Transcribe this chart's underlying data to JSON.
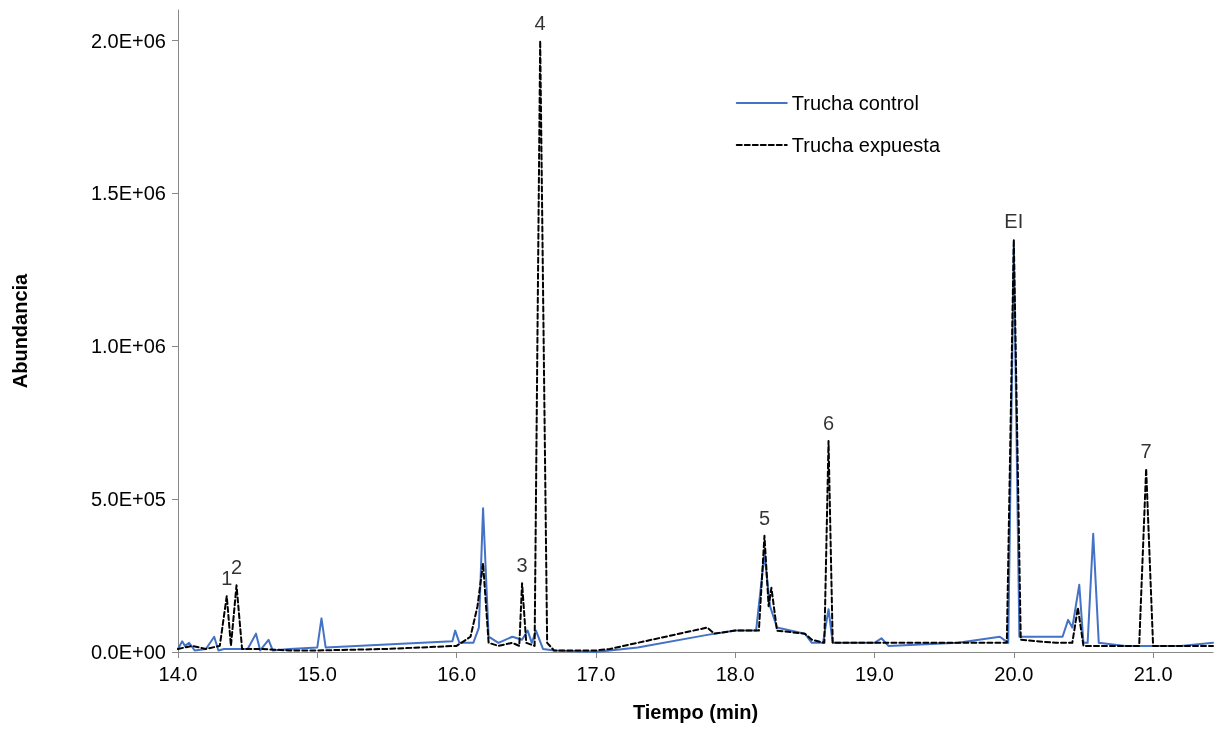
{
  "chart_data": {
    "type": "line",
    "xlabel": "Tiempo (min)",
    "ylabel": "Abundancia",
    "xlim": [
      14,
      21.43
    ],
    "xticks": [
      {
        "value": 14,
        "label": "14.0"
      },
      {
        "value": 15,
        "label": "15.0"
      },
      {
        "value": 16,
        "label": "16.0"
      },
      {
        "value": 17,
        "label": "17.0"
      },
      {
        "value": 18,
        "label": "18.0"
      },
      {
        "value": 19,
        "label": "19.0"
      },
      {
        "value": 20,
        "label": "20.0"
      },
      {
        "value": 21,
        "label": "21.0"
      }
    ],
    "ylim": [
      0,
      2100000
    ],
    "yticks": [
      {
        "value": 0,
        "label": "0.0E+00"
      },
      {
        "value": 500000,
        "label": "5.0E+05"
      },
      {
        "value": 1000000,
        "label": "1.0E+06"
      },
      {
        "value": 1500000,
        "label": "1.5E+06"
      },
      {
        "value": 2000000,
        "label": "2.0E+06"
      }
    ],
    "grid": false,
    "legend": "top right",
    "marker": "none",
    "series": [
      {
        "name": "Trucha control",
        "color": "#4472c4",
        "line_style": "solid",
        "x": [
          14.0,
          14.03,
          14.05,
          14.08,
          14.12,
          14.2,
          14.26,
          14.29,
          14.33,
          14.4,
          14.5,
          14.56,
          14.59,
          14.65,
          14.68,
          14.8,
          15.0,
          15.03,
          15.06,
          15.97,
          15.99,
          16.02,
          16.12,
          16.16,
          16.19,
          16.23,
          16.3,
          16.4,
          16.47,
          16.51,
          16.54,
          16.57,
          16.62,
          16.7,
          17.0,
          17.3,
          17.8,
          18.0,
          18.15,
          18.21,
          18.25,
          18.3,
          18.5,
          18.55,
          18.63,
          18.67,
          18.7,
          19.0,
          19.05,
          19.1,
          19.6,
          19.9,
          19.96,
          20.0,
          20.04,
          20.2,
          20.35,
          20.39,
          20.42,
          20.47,
          20.5,
          20.53,
          20.57,
          20.61,
          20.8,
          21.0,
          21.2,
          21.43
        ],
        "values": [
          10000,
          35000,
          20000,
          30000,
          5000,
          10000,
          50000,
          5000,
          10000,
          10000,
          10000,
          60000,
          5000,
          40000,
          5000,
          10000,
          15000,
          110000,
          15000,
          35000,
          70000,
          30000,
          30000,
          80000,
          470000,
          50000,
          30000,
          50000,
          40000,
          70000,
          30000,
          70000,
          10000,
          5000,
          0,
          15000,
          56000,
          70000,
          70000,
          320000,
          150000,
          80000,
          60000,
          30000,
          30000,
          140000,
          30000,
          30000,
          45000,
          20000,
          30000,
          50000,
          30000,
          1330000,
          50000,
          50000,
          50000,
          105000,
          80000,
          220000,
          30000,
          30000,
          387000,
          30000,
          20000,
          20000,
          20000,
          30000
        ]
      },
      {
        "name": "Trucha expuesta",
        "color": "#000000",
        "line_style": "dashed",
        "x": [
          14.0,
          14.1,
          14.2,
          14.3,
          14.35,
          14.38,
          14.42,
          14.46,
          14.6,
          14.8,
          15.0,
          15.5,
          16.0,
          16.1,
          16.15,
          16.19,
          16.23,
          16.3,
          16.4,
          16.45,
          16.47,
          16.5,
          16.56,
          16.6,
          16.65,
          16.7,
          17.0,
          17.1,
          17.5,
          17.8,
          17.85,
          18.0,
          18.17,
          18.21,
          18.24,
          18.26,
          18.3,
          18.5,
          18.55,
          18.64,
          18.67,
          18.7,
          19.0,
          19.5,
          19.95,
          20.0,
          20.05,
          20.3,
          20.42,
          20.46,
          20.5,
          20.9,
          20.95,
          21.0,
          21.2,
          21.43
        ],
        "values": [
          10000,
          20000,
          10000,
          20000,
          183000,
          20000,
          218000,
          10000,
          10000,
          5000,
          5000,
          10000,
          20000,
          50000,
          150000,
          290000,
          30000,
          20000,
          30000,
          20000,
          225000,
          30000,
          20000,
          2000000,
          30000,
          5000,
          5000,
          10000,
          50000,
          80000,
          60000,
          70000,
          70000,
          380000,
          150000,
          210000,
          70000,
          60000,
          40000,
          30000,
          690000,
          30000,
          30000,
          30000,
          30000,
          1350000,
          40000,
          30000,
          30000,
          145000,
          20000,
          20000,
          600000,
          20000,
          20000,
          20000
        ]
      }
    ],
    "annotations": [
      {
        "text": "1",
        "x": 14.35,
        "y": 183000
      },
      {
        "text": "2",
        "x": 14.42,
        "y": 218000
      },
      {
        "text": "3",
        "x": 16.47,
        "y": 225000
      },
      {
        "text": "4",
        "x": 16.6,
        "y": 2000000
      },
      {
        "text": "5",
        "x": 18.21,
        "y": 380000
      },
      {
        "text": "6",
        "x": 18.67,
        "y": 690000
      },
      {
        "text": "EI",
        "x": 20.0,
        "y": 1350000
      },
      {
        "text": "7",
        "x": 20.95,
        "y": 600000
      }
    ]
  }
}
